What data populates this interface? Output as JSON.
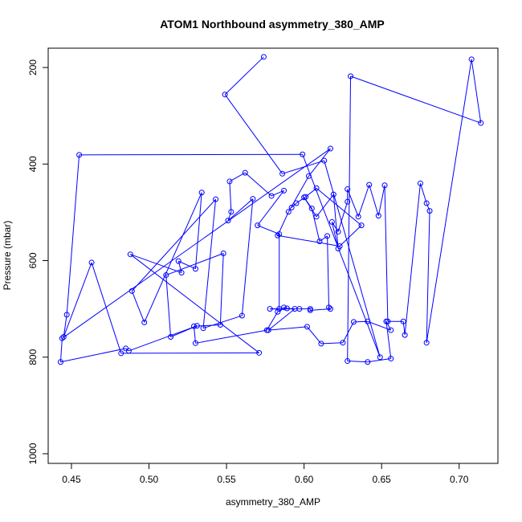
{
  "chart_data": {
    "type": "line",
    "title": "ATOM1 Northbound asymmetry_380_AMP",
    "xlabel": "asymmetry_380_AMP",
    "ylabel": "Pressure (mbar)",
    "xlim": [
      0.435,
      0.725
    ],
    "ylim": [
      1020,
      160
    ],
    "y_reversed": true,
    "x_ticks": [
      0.45,
      0.5,
      0.55,
      0.6,
      0.65,
      0.7
    ],
    "x_tick_labels": [
      "0.45",
      "0.50",
      "0.55",
      "0.60",
      "0.65",
      "0.70"
    ],
    "y_ticks": [
      200,
      400,
      600,
      800,
      1000
    ],
    "y_tick_labels": [
      "200",
      "400",
      "600",
      "800",
      "1000"
    ],
    "grid": false,
    "legend": "none",
    "series": [
      {
        "color": "#0000ff",
        "points": [
          [
            0.574,
            178
          ],
          [
            0.549,
            256
          ],
          [
            0.586,
            420
          ],
          [
            0.613,
            393
          ],
          [
            0.649,
            800
          ],
          [
            0.599,
            380
          ],
          [
            0.455,
            381
          ],
          [
            0.447,
            712
          ],
          [
            0.445,
            758
          ],
          [
            0.463,
            604
          ],
          [
            0.482,
            792
          ],
          [
            0.571,
            791
          ],
          [
            0.488,
            587
          ],
          [
            0.521,
            625
          ],
          [
            0.519,
            601
          ],
          [
            0.53,
            617
          ],
          [
            0.534,
            459
          ],
          [
            0.497,
            728
          ],
          [
            0.489,
            663
          ],
          [
            0.543,
            473
          ],
          [
            0.535,
            740
          ],
          [
            0.56,
            714
          ],
          [
            0.567,
            472
          ],
          [
            0.551,
            517
          ],
          [
            0.553,
            499
          ],
          [
            0.552,
            436
          ],
          [
            0.562,
            418
          ],
          [
            0.579,
            466
          ],
          [
            0.587,
            455
          ],
          [
            0.57,
            527
          ],
          [
            0.584,
            545
          ],
          [
            0.584,
            700
          ],
          [
            0.578,
            700
          ],
          [
            0.597,
            700
          ],
          [
            0.604,
            700
          ],
          [
            0.604,
            703
          ],
          [
            0.617,
            700
          ],
          [
            0.616,
            697
          ],
          [
            0.615,
            549
          ],
          [
            0.61,
            560
          ],
          [
            0.605,
            492
          ],
          [
            0.6,
            469
          ],
          [
            0.608,
            509
          ],
          [
            0.619,
            463
          ],
          [
            0.622,
            575
          ],
          [
            0.618,
            520
          ],
          [
            0.622,
            540
          ],
          [
            0.628,
            478
          ],
          [
            0.628,
            452
          ],
          [
            0.635,
            509
          ],
          [
            0.642,
            443
          ],
          [
            0.648,
            507
          ],
          [
            0.652,
            444
          ],
          [
            0.654,
            726
          ],
          [
            0.664,
            726
          ],
          [
            0.665,
            754
          ],
          [
            0.675,
            440
          ],
          [
            0.679,
            481
          ],
          [
            0.681,
            497
          ],
          [
            0.679,
            770
          ],
          [
            0.708,
            183
          ],
          [
            0.714,
            315
          ],
          [
            0.63,
            218
          ],
          [
            0.628,
            808
          ],
          [
            0.641,
            810
          ],
          [
            0.656,
            803
          ],
          [
            0.653,
            726
          ],
          [
            0.656,
            744
          ],
          [
            0.641,
            726
          ],
          [
            0.632,
            727
          ],
          [
            0.625,
            770
          ],
          [
            0.611,
            772
          ],
          [
            0.602,
            737
          ],
          [
            0.577,
            744
          ],
          [
            0.594,
            700
          ],
          [
            0.589,
            699
          ],
          [
            0.587,
            697
          ],
          [
            0.583,
            706
          ],
          [
            0.576,
            744
          ],
          [
            0.53,
            771
          ],
          [
            0.529,
            736
          ],
          [
            0.546,
            733
          ],
          [
            0.548,
            585
          ],
          [
            0.511,
            630
          ],
          [
            0.514,
            758
          ],
          [
            0.531,
            735
          ],
          [
            0.487,
            787
          ],
          [
            0.485,
            782
          ],
          [
            0.443,
            810
          ],
          [
            0.444,
            761
          ],
          [
            0.617,
            368
          ],
          [
            0.603,
            425
          ],
          [
            0.59,
            499
          ],
          [
            0.583,
            548
          ],
          [
            0.623,
            570
          ],
          [
            0.637,
            527
          ],
          [
            0.608,
            450
          ],
          [
            0.601,
            468
          ],
          [
            0.595,
            481
          ],
          [
            0.592,
            490
          ]
        ]
      }
    ]
  }
}
